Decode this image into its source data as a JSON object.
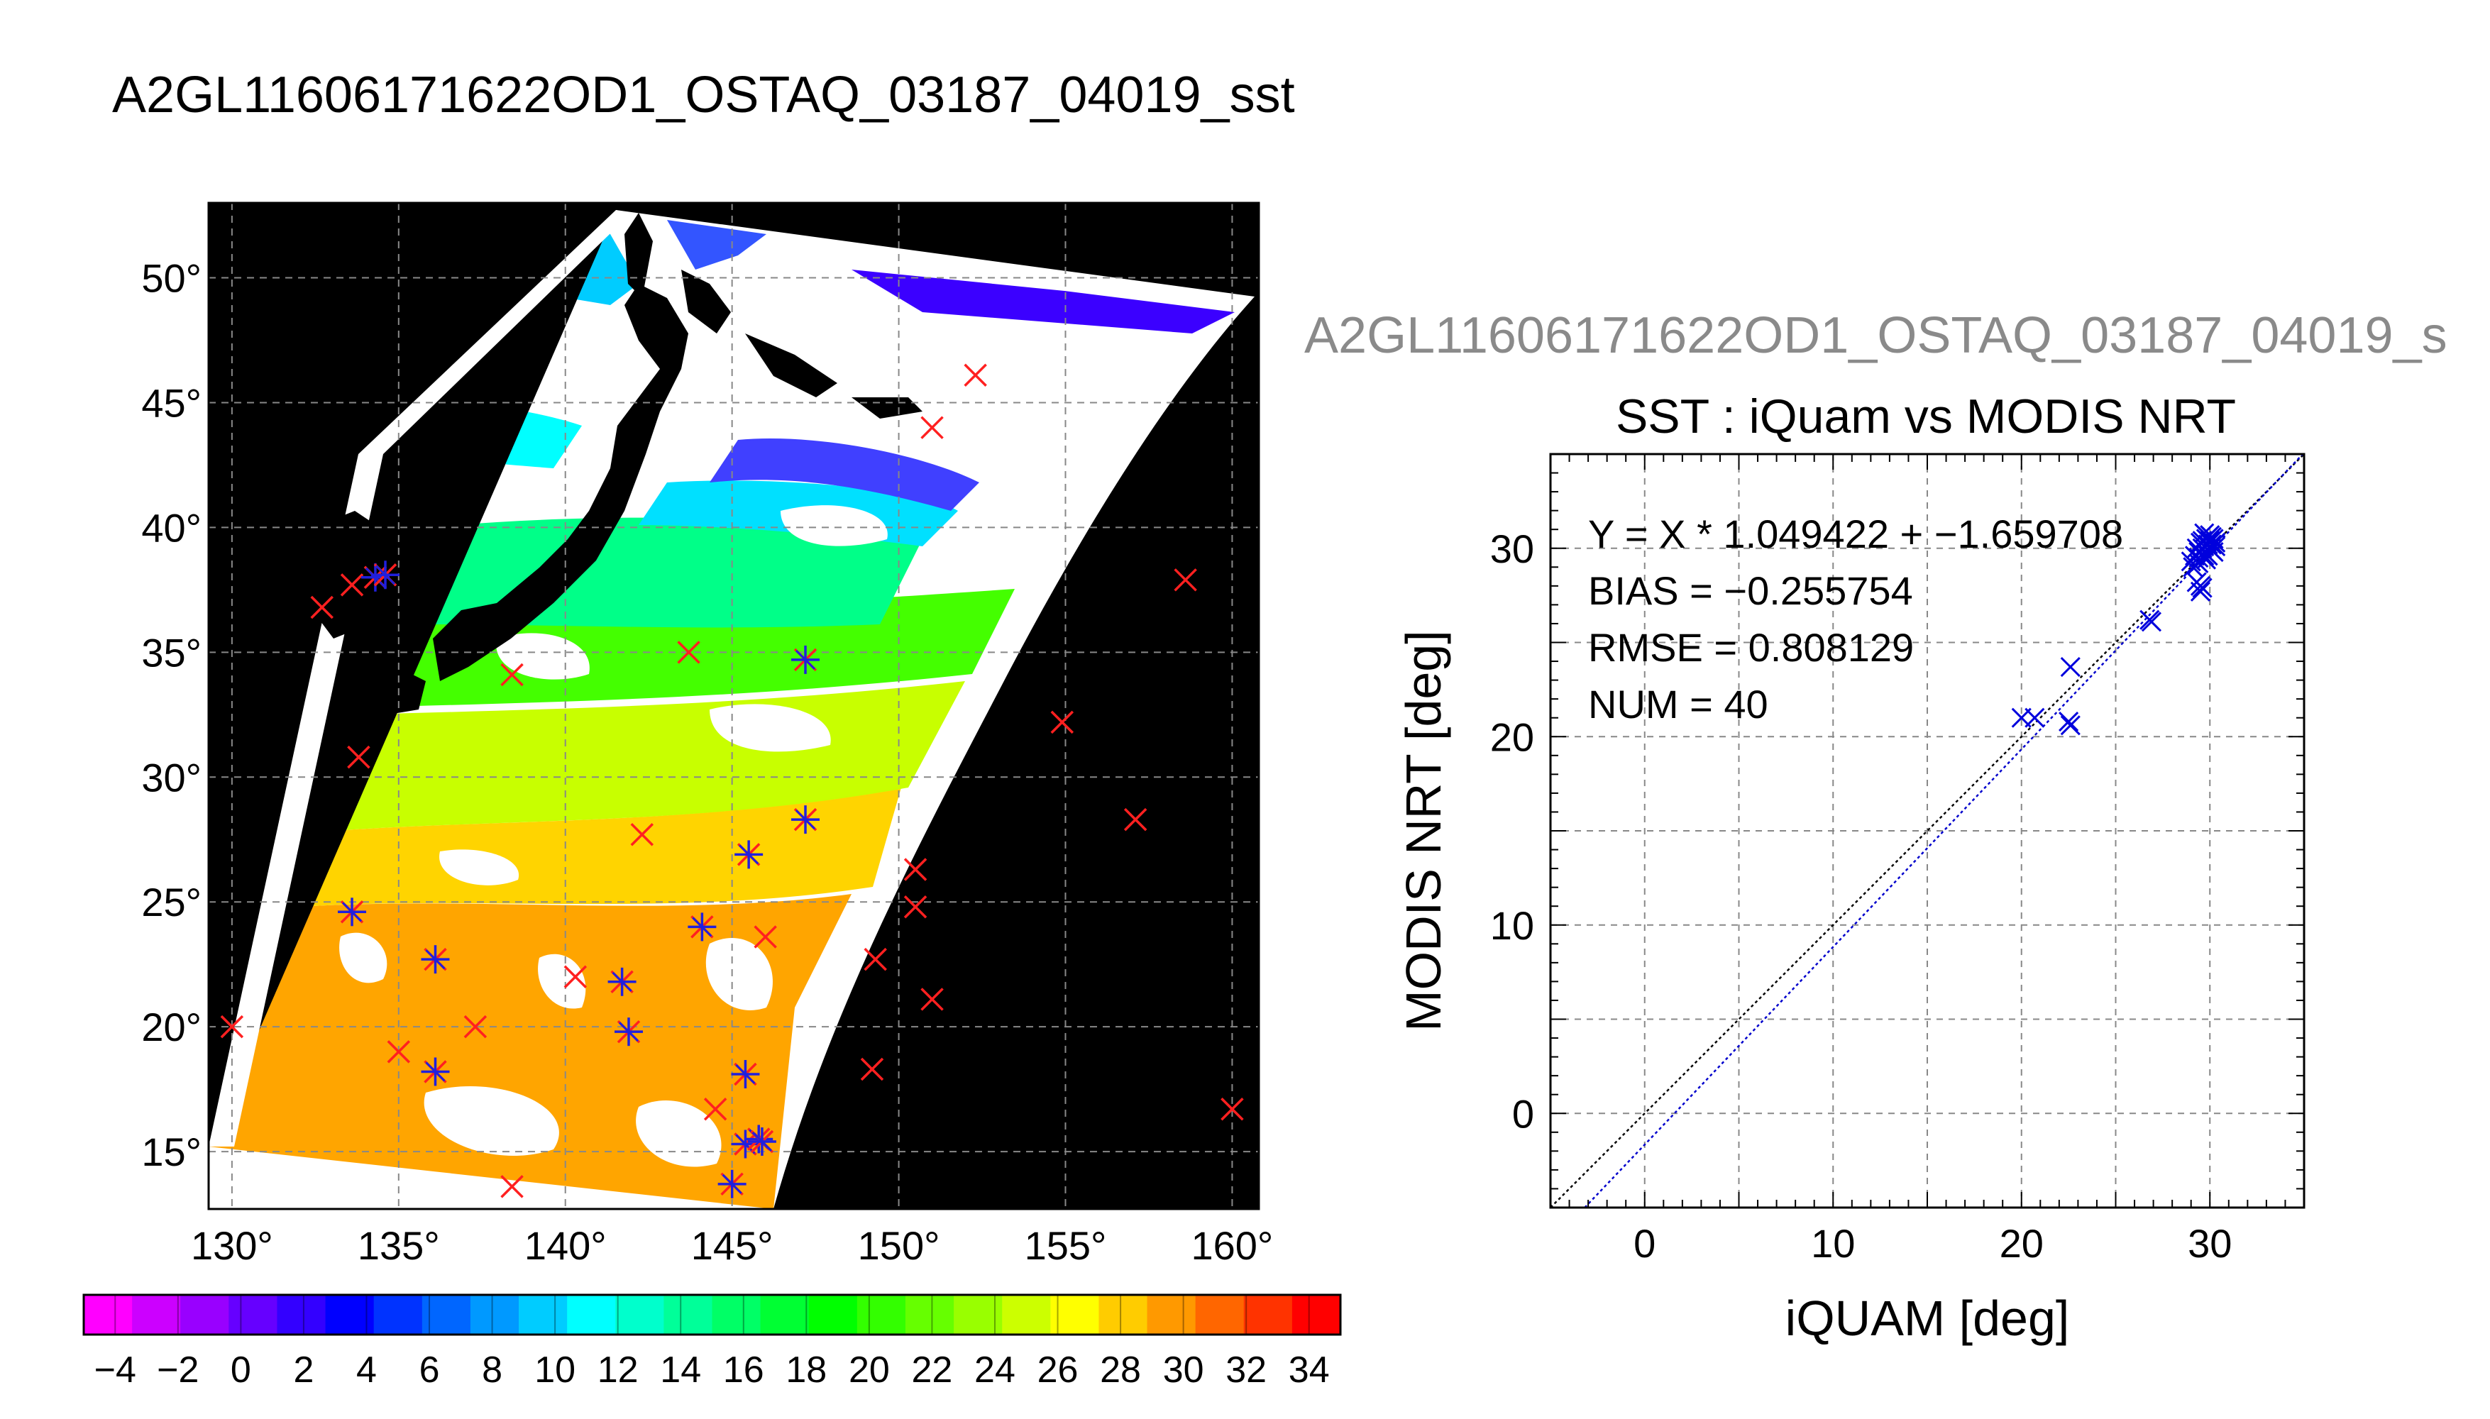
{
  "header": {
    "title": "A2GL11606171622OD1_OSTAQ_03187_04019_sst",
    "subtitle": "A2GL11606171622OD1_OSTAQ_03187_04019_s"
  },
  "map": {
    "lon_ticks": [
      "130°",
      "135°",
      "140°",
      "145°",
      "150°",
      "155°",
      "160°"
    ],
    "lon_values": [
      130,
      135,
      140,
      145,
      150,
      155,
      160
    ],
    "lat_ticks": [
      "15°",
      "20°",
      "25°",
      "30°",
      "35°",
      "40°",
      "45°",
      "50°"
    ],
    "lat_values": [
      15,
      20,
      25,
      30,
      35,
      40,
      45,
      50
    ],
    "lon_range": [
      129.3,
      160.8
    ],
    "lat_range": [
      12.7,
      53.0
    ],
    "colorbar": {
      "range": [
        -5,
        35
      ],
      "labels": [
        "−4",
        "−2",
        "0",
        "2",
        "4",
        "6",
        "8",
        "10",
        "12",
        "14",
        "16",
        "18",
        "20",
        "22",
        "24",
        "26",
        "28",
        "30",
        "32",
        "34"
      ],
      "label_values": [
        -4,
        -2,
        0,
        2,
        4,
        6,
        8,
        10,
        12,
        14,
        16,
        18,
        20,
        22,
        24,
        26,
        28,
        30,
        32,
        34
      ],
      "colors": [
        "#ff00ff",
        "#cc00ff",
        "#9900ff",
        "#6600ff",
        "#3300ff",
        "#0000ff",
        "#0033ff",
        "#0066ff",
        "#0099ff",
        "#00ccff",
        "#00ffff",
        "#00ffcc",
        "#00ff99",
        "#00ff66",
        "#00ff33",
        "#00ff00",
        "#33ff00",
        "#66ff00",
        "#99ff00",
        "#ccff00",
        "#ffff00",
        "#ffcc00",
        "#ff9900",
        "#ff6600",
        "#ff3300",
        "#ff0000"
      ]
    },
    "red_x_marks": [
      [
        130.0,
        20.0
      ],
      [
        132.7,
        36.8
      ],
      [
        133.6,
        37.7
      ],
      [
        133.8,
        30.8
      ],
      [
        135.0,
        19.0
      ],
      [
        137.3,
        20.0
      ],
      [
        138.4,
        13.6
      ],
      [
        138.4,
        34.1
      ],
      [
        140.3,
        22.0
      ],
      [
        142.3,
        27.7
      ],
      [
        143.7,
        35.0
      ],
      [
        144.5,
        16.7
      ],
      [
        146.0,
        23.6
      ],
      [
        149.2,
        18.3
      ],
      [
        149.3,
        22.7
      ],
      [
        150.5,
        26.3
      ],
      [
        150.5,
        24.8
      ],
      [
        151.0,
        44.0
      ],
      [
        151.0,
        21.1
      ],
      [
        152.3,
        46.1
      ],
      [
        154.9,
        32.2
      ],
      [
        157.1,
        28.3
      ],
      [
        158.6,
        37.9
      ],
      [
        160.0,
        16.7
      ]
    ],
    "star_marks": [
      [
        133.6,
        24.6
      ],
      [
        134.3,
        38.0
      ],
      [
        134.6,
        38.1
      ],
      [
        136.1,
        22.7
      ],
      [
        136.1,
        18.2
      ],
      [
        141.7,
        21.8
      ],
      [
        141.9,
        19.8
      ],
      [
        144.1,
        24.0
      ],
      [
        145.0,
        13.7
      ],
      [
        145.4,
        18.1
      ],
      [
        145.5,
        26.9
      ],
      [
        145.4,
        15.3
      ],
      [
        145.8,
        15.5
      ],
      [
        145.9,
        15.4
      ],
      [
        147.2,
        28.3
      ],
      [
        147.2,
        34.7
      ]
    ]
  },
  "chart_data": {
    "type": "scatter",
    "title": "SST : iQuam vs MODIS NRT",
    "xlabel": "iQUAM [deg]",
    "ylabel": "MODIS NRT [deg]",
    "xlim": [
      -5,
      35
    ],
    "ylim": [
      -5,
      35
    ],
    "x_ticks": [
      "0",
      "10",
      "20",
      "30"
    ],
    "y_ticks": [
      "0",
      "10",
      "20",
      "30"
    ],
    "tick_values": [
      0,
      10,
      20,
      30
    ],
    "grid_values": [
      0,
      5,
      10,
      15,
      20,
      25,
      30
    ],
    "grid": true,
    "annotations": [
      "Y = X * 1.049422 + −1.659708",
      "BIAS = −0.255754",
      "RMSE = 0.808129",
      "NUM = 40"
    ],
    "fit": {
      "slope": 1.049422,
      "intercept": -1.659708
    },
    "points": [
      [
        20.0,
        21.0
      ],
      [
        20.7,
        21.0
      ],
      [
        22.5,
        20.8
      ],
      [
        22.6,
        20.6
      ],
      [
        22.6,
        23.7
      ],
      [
        26.8,
        26.2
      ],
      [
        26.9,
        26.1
      ],
      [
        29.0,
        29.3
      ],
      [
        29.1,
        29.0
      ],
      [
        29.2,
        29.6
      ],
      [
        29.3,
        30.0
      ],
      [
        29.3,
        28.2
      ],
      [
        29.4,
        29.8
      ],
      [
        29.4,
        29.5
      ],
      [
        29.5,
        30.3
      ],
      [
        29.5,
        27.7
      ],
      [
        29.6,
        30.4
      ],
      [
        29.6,
        30.0
      ],
      [
        29.7,
        29.6
      ],
      [
        29.7,
        30.1
      ],
      [
        29.8,
        30.5
      ],
      [
        29.8,
        29.7
      ],
      [
        29.9,
        30.2
      ],
      [
        29.9,
        30.6
      ],
      [
        30.0,
        30.0
      ],
      [
        30.0,
        30.4
      ],
      [
        30.1,
        29.9
      ],
      [
        30.1,
        30.2
      ],
      [
        30.2,
        30.5
      ],
      [
        30.2,
        29.8
      ],
      [
        30.3,
        30.1
      ],
      [
        30.3,
        30.3
      ],
      [
        29.5,
        28.0
      ],
      [
        29.6,
        27.9
      ],
      [
        29.4,
        29.2
      ],
      [
        29.8,
        29.4
      ],
      [
        30.0,
        30.7
      ],
      [
        29.7,
        30.8
      ],
      [
        29.9,
        29.6
      ],
      [
        30.1,
        30.6
      ]
    ],
    "marker_color": "#0000dd"
  }
}
